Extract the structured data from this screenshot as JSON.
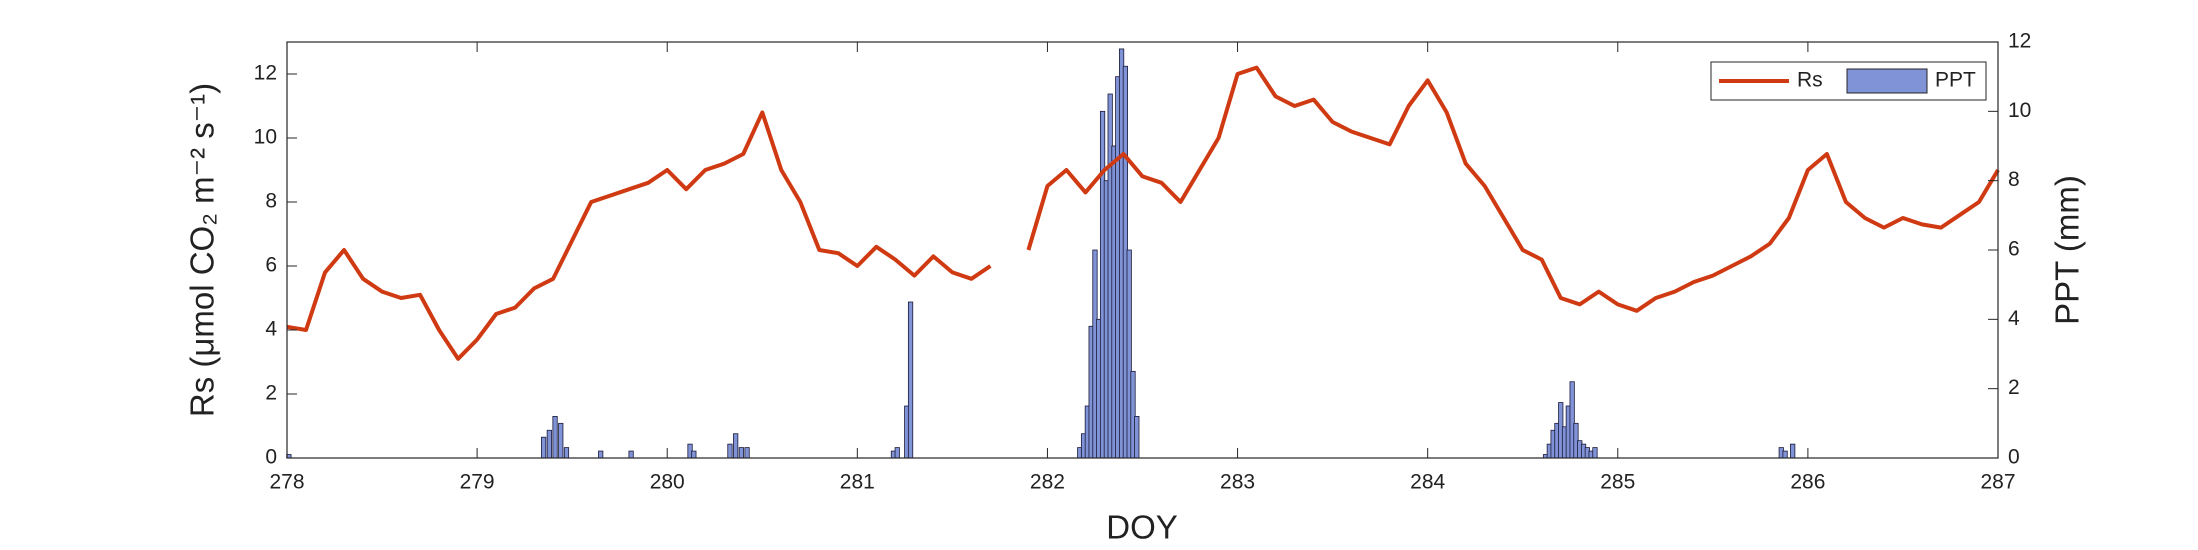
{
  "chart_data": {
    "type": "combo",
    "x_label": "DOY",
    "y_label": "Rs (μmol CO₂ m⁻² s⁻¹)",
    "y2_label": "PPT (mm)",
    "xlim": [
      278,
      287
    ],
    "xticks": [
      278,
      279,
      280,
      281,
      282,
      283,
      284,
      285,
      286,
      287
    ],
    "ylim": [
      0,
      13
    ],
    "yticks": [
      0,
      2,
      4,
      6,
      8,
      10,
      12
    ],
    "y2lim": [
      0,
      12
    ],
    "y2ticks": [
      0,
      2,
      4,
      6,
      8,
      10,
      12
    ],
    "legend": "upper right",
    "series": [
      {
        "name": "Rs",
        "type": "line",
        "color": "#d03a12",
        "x": [
          278.0,
          278.1,
          278.2,
          278.3,
          278.4,
          278.5,
          278.6,
          278.7,
          278.8,
          278.9,
          279.0,
          279.1,
          279.2,
          279.3,
          279.4,
          279.5,
          279.6,
          279.7,
          279.8,
          279.9,
          280.0,
          280.1,
          280.2,
          280.3,
          280.4,
          280.5,
          280.6,
          280.7,
          280.8,
          280.9,
          281.0,
          281.1,
          281.2,
          281.3,
          281.4,
          281.5,
          281.6,
          281.7,
          281.8,
          281.9,
          282.0,
          282.1,
          282.2,
          282.3,
          282.4,
          282.5,
          282.6,
          282.7,
          282.8,
          282.9,
          283.0,
          283.1,
          283.2,
          283.3,
          283.4,
          283.5,
          283.6,
          283.7,
          283.8,
          283.9,
          284.0,
          284.1,
          284.2,
          284.3,
          284.4,
          284.5,
          284.6,
          284.7,
          284.8,
          284.9,
          285.0,
          285.1,
          285.2,
          285.3,
          285.4,
          285.5,
          285.6,
          285.7,
          285.8,
          285.9,
          286.0,
          286.1,
          286.2,
          286.3,
          286.4,
          286.5,
          286.6,
          286.7,
          286.8,
          286.9,
          287.0
        ],
        "values": [
          4.1,
          4.0,
          5.8,
          6.5,
          5.6,
          5.2,
          5.0,
          5.1,
          4.0,
          3.1,
          3.7,
          4.5,
          4.7,
          5.3,
          5.6,
          6.8,
          8.0,
          8.2,
          8.4,
          8.6,
          9.0,
          8.4,
          9.0,
          9.2,
          9.5,
          10.8,
          9.0,
          8.0,
          6.5,
          6.4,
          6.0,
          6.6,
          6.2,
          5.7,
          6.3,
          5.8,
          5.6,
          6.0,
          null,
          6.5,
          8.5,
          9.0,
          8.3,
          9.0,
          9.5,
          8.8,
          8.6,
          8.0,
          9.0,
          10.0,
          12.0,
          12.2,
          11.3,
          11.0,
          11.2,
          10.5,
          10.2,
          10.0,
          9.8,
          11.0,
          11.8,
          10.8,
          9.2,
          8.5,
          7.5,
          6.5,
          6.2,
          5.0,
          4.8,
          5.2,
          4.8,
          4.6,
          5.0,
          5.2,
          5.5,
          5.7,
          6.0,
          6.3,
          6.7,
          7.5,
          9.0,
          9.5,
          8.0,
          7.5,
          7.2,
          7.5,
          7.3,
          7.2,
          7.6,
          8.0,
          9.0
        ]
      },
      {
        "name": "PPT",
        "type": "bar",
        "axis": "y2",
        "color": "#8093d6",
        "x": [
          278.01,
          279.35,
          279.38,
          279.41,
          279.44,
          279.47,
          279.65,
          279.81,
          280.12,
          280.14,
          280.33,
          280.36,
          280.39,
          280.42,
          281.19,
          281.21,
          281.26,
          281.28,
          282.17,
          282.19,
          282.21,
          282.23,
          282.25,
          282.27,
          282.29,
          282.31,
          282.33,
          282.35,
          282.37,
          282.39,
          282.41,
          282.43,
          282.45,
          282.47,
          284.62,
          284.64,
          284.66,
          284.68,
          284.7,
          284.72,
          284.74,
          284.76,
          284.78,
          284.8,
          284.82,
          284.84,
          284.86,
          284.88,
          285.86,
          285.88,
          285.92
        ],
        "values": [
          0.1,
          0.6,
          0.8,
          1.2,
          1.0,
          0.3,
          0.2,
          0.2,
          0.4,
          0.2,
          0.4,
          0.7,
          0.3,
          0.3,
          0.2,
          0.3,
          1.5,
          4.5,
          0.3,
          0.7,
          1.5,
          3.8,
          6.0,
          4.0,
          10.0,
          8.0,
          10.5,
          9.0,
          11.0,
          11.8,
          11.3,
          6.0,
          2.5,
          1.2,
          0.1,
          0.4,
          0.8,
          1.0,
          1.6,
          0.9,
          1.5,
          2.2,
          1.0,
          0.5,
          0.4,
          0.3,
          0.2,
          0.3,
          0.3,
          0.2,
          0.4
        ]
      }
    ]
  }
}
